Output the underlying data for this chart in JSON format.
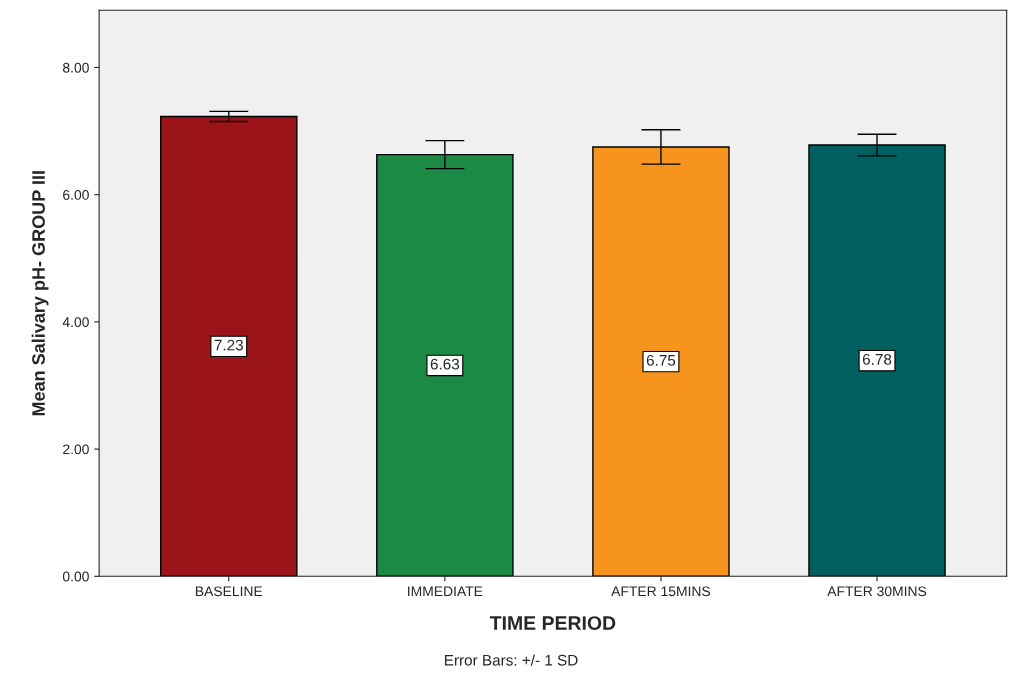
{
  "chart_data": {
    "type": "bar",
    "xlabel": "TIME PERIOD",
    "ylabel": "Mean Salivary pH- GROUP III",
    "categories": [
      "BASELINE",
      "IMMEDIATE",
      "AFTER 15MINS",
      "AFTER 30MINS"
    ],
    "values": [
      7.23,
      6.63,
      6.75,
      6.78
    ],
    "colors": [
      "#9b1419",
      "#1a8a45",
      "#f7941d",
      "#006060"
    ],
    "errors": [
      0.08,
      0.22,
      0.27,
      0.17
    ],
    "data_labels": true,
    "ylim": [
      0,
      8.9
    ],
    "yticks": [
      {
        "value": 0,
        "label": "0.00"
      },
      {
        "value": 2,
        "label": "2.00"
      },
      {
        "value": 4,
        "label": "4.00"
      },
      {
        "value": 6,
        "label": "6.00"
      },
      {
        "value": 8,
        "label": "8.00"
      }
    ],
    "grid": false,
    "legend": false,
    "annotations": [
      "Error Bars: +/- 1 SD"
    ]
  }
}
